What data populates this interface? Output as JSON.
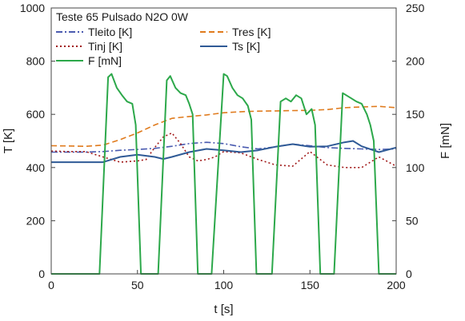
{
  "chart_data": {
    "type": "line",
    "title": "Teste 65 Pulsado N2O 0W",
    "xlabel": "t [s]",
    "ylabel": "T [K]",
    "y2label": "F [mN]",
    "xlim": [
      0,
      200
    ],
    "ylim": [
      0,
      1000
    ],
    "y2lim": [
      0,
      250
    ],
    "xticks": [
      "0",
      "50",
      "100",
      "150",
      "200"
    ],
    "yticks": [
      "0",
      "200",
      "400",
      "600",
      "800",
      "1000"
    ],
    "y2ticks": [
      "0",
      "50",
      "100",
      "150",
      "200",
      "250"
    ],
    "grid": false,
    "legend_position": "top-left",
    "series": [
      {
        "name": "Tleito [K]",
        "axis": "left",
        "color": "#4a5bb0",
        "dash": "dash-dot",
        "x": [
          0,
          10,
          20,
          30,
          40,
          50,
          60,
          70,
          80,
          90,
          100,
          110,
          120,
          130,
          140,
          150,
          160,
          170,
          180,
          190,
          200
        ],
        "y": [
          458,
          458,
          458,
          460,
          465,
          468,
          472,
          480,
          490,
          495,
          490,
          478,
          470,
          478,
          488,
          482,
          475,
          472,
          470,
          468,
          470
        ]
      },
      {
        "name": "Tres [K]",
        "axis": "left",
        "color": "#e07a1c",
        "dash": "dashed",
        "x": [
          0,
          10,
          20,
          30,
          40,
          50,
          60,
          70,
          80,
          90,
          100,
          110,
          120,
          130,
          140,
          150,
          160,
          170,
          180,
          190,
          200
        ],
        "y": [
          482,
          481,
          480,
          484,
          505,
          530,
          560,
          585,
          592,
          598,
          606,
          610,
          612,
          613,
          614,
          615,
          618,
          625,
          628,
          630,
          625
        ]
      },
      {
        "name": "Tinj [K]",
        "axis": "left",
        "color": "#a01818",
        "dash": "dotted",
        "x": [
          0,
          10,
          20,
          30,
          40,
          50,
          55,
          60,
          65,
          70,
          75,
          80,
          85,
          90,
          95,
          100,
          110,
          120,
          130,
          140,
          150,
          160,
          170,
          180,
          190,
          200
        ],
        "y": [
          462,
          460,
          460,
          440,
          420,
          425,
          430,
          475,
          515,
          530,
          490,
          440,
          425,
          430,
          440,
          460,
          455,
          430,
          410,
          405,
          460,
          410,
          400,
          400,
          440,
          405
        ]
      },
      {
        "name": "Ts [K]",
        "axis": "left",
        "color": "#2f5a96",
        "dash": "solid",
        "x": [
          0,
          10,
          20,
          30,
          40,
          50,
          60,
          65,
          70,
          80,
          90,
          100,
          110,
          120,
          130,
          140,
          150,
          160,
          170,
          175,
          180,
          190,
          200
        ],
        "y": [
          420,
          420,
          420,
          420,
          440,
          448,
          440,
          432,
          440,
          458,
          470,
          465,
          458,
          465,
          478,
          488,
          478,
          480,
          495,
          500,
          480,
          458,
          475
        ]
      },
      {
        "name": "F [mN]",
        "axis": "right",
        "color": "#2ca84a",
        "dash": "solid",
        "x": [
          0,
          28,
          33,
          35,
          38,
          41,
          44,
          47,
          49,
          52,
          62,
          67,
          69,
          72,
          75,
          78,
          80,
          82,
          85,
          93,
          100,
          102,
          105,
          108,
          111,
          114,
          116,
          119,
          128,
          133,
          136,
          139,
          142,
          145,
          148,
          151,
          153,
          156,
          164,
          169,
          171,
          174,
          177,
          180,
          183,
          185,
          187,
          190,
          200
        ],
        "y": [
          0,
          0,
          185,
          188,
          175,
          168,
          162,
          160,
          140,
          0,
          0,
          182,
          186,
          175,
          170,
          168,
          160,
          150,
          0,
          0,
          188,
          186,
          175,
          168,
          165,
          158,
          145,
          0,
          0,
          162,
          165,
          162,
          168,
          165,
          150,
          155,
          140,
          0,
          0,
          170,
          168,
          165,
          162,
          160,
          150,
          140,
          125,
          0,
          0
        ]
      }
    ]
  }
}
